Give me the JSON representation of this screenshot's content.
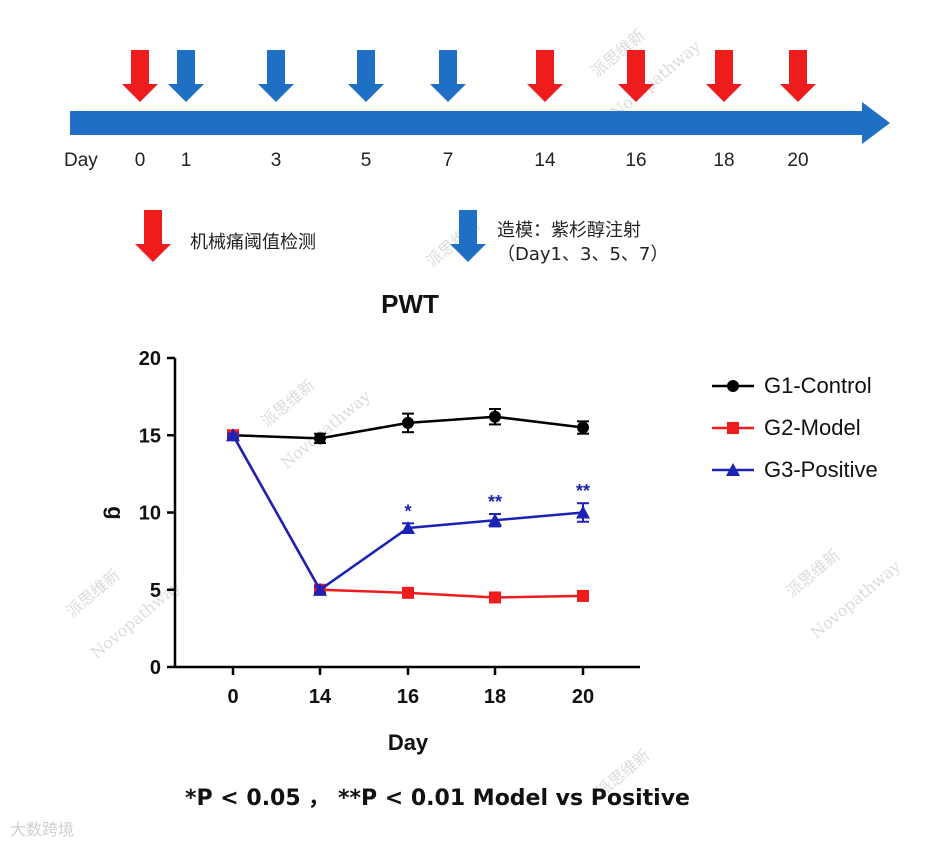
{
  "timeline": {
    "label_day": "Day",
    "ticks": [
      "0",
      "1",
      "3",
      "5",
      "7",
      "14",
      "16",
      "18",
      "20"
    ],
    "red_marks": [
      "0",
      "14",
      "16",
      "18",
      "20"
    ],
    "blue_marks": [
      "1",
      "3",
      "5",
      "7"
    ],
    "legend": {
      "red_text": "机械痛阈值检测",
      "blue_text": "造模：紫杉醇注射",
      "blue_subtext": "（Day1、3、5、7）"
    },
    "colors": {
      "arrow_bar": "#1f6fc5",
      "red": "#ee1c1c",
      "blue": "#1f6fc5"
    }
  },
  "chart_data": {
    "type": "line",
    "title": "PWT",
    "xlabel": "Day",
    "ylabel": "g",
    "categories": [
      "0",
      "14",
      "16",
      "18",
      "20"
    ],
    "ylim": [
      0,
      20
    ],
    "yticks": [
      0,
      5,
      10,
      15,
      20
    ],
    "grid": false,
    "legend_position": "right",
    "series": [
      {
        "name": "G1-Control",
        "values": [
          15.0,
          14.8,
          15.8,
          16.2,
          15.5
        ],
        "errors": [
          0.2,
          0.3,
          0.6,
          0.5,
          0.4
        ],
        "color": "#000000",
        "marker": "circle"
      },
      {
        "name": "G2-Model",
        "values": [
          15.0,
          5.0,
          4.8,
          4.5,
          4.6
        ],
        "errors": [
          0.1,
          0.2,
          0.2,
          0.2,
          0.2
        ],
        "color": "#ee1c1c",
        "marker": "square"
      },
      {
        "name": "G3-Positive",
        "values": [
          15.0,
          5.0,
          9.0,
          9.5,
          10.0
        ],
        "errors": [
          0.1,
          0.2,
          0.3,
          0.4,
          0.6
        ],
        "color": "#1a23b5",
        "marker": "triangle"
      }
    ],
    "annotations": [
      {
        "category": "16",
        "text": "*"
      },
      {
        "category": "18",
        "text": "**"
      },
      {
        "category": "20",
        "text": "**"
      }
    ],
    "footnote": "*P < 0.05 ， **P < 0.01 Model vs Positive"
  },
  "watermark": {
    "text_cn": "派思维新",
    "text_en": "Novopathway",
    "corner_text": "大数跨境"
  }
}
